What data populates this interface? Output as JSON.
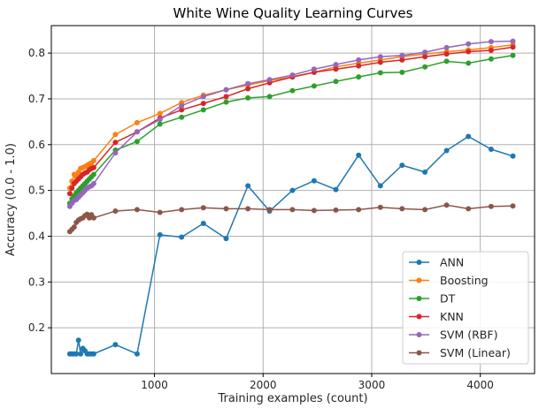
{
  "chart_data": {
    "type": "line",
    "title": "White Wine Quality Learning Curves",
    "xlabel": "Training examples (count)",
    "ylabel": "Accuracy (0.0 - 1.0)",
    "xlim": [
      50,
      4500
    ],
    "ylim": [
      0.1,
      0.86
    ],
    "xticks": [
      1000,
      2000,
      3000,
      4000
    ],
    "yticks": [
      0.2,
      0.3,
      0.4,
      0.5,
      0.6,
      0.7,
      0.8
    ],
    "grid": true,
    "legend_position": "lower-right",
    "series": [
      {
        "name": "ANN",
        "color": "#1f77b4",
        "x": [
          220,
          240,
          260,
          280,
          300,
          320,
          340,
          360,
          380,
          400,
          420,
          440,
          640,
          840,
          1050,
          1250,
          1450,
          1660,
          1860,
          2060,
          2270,
          2470,
          2670,
          2880,
          3080,
          3280,
          3490,
          3690,
          3890,
          4100,
          4300
        ],
        "y": [
          0.143,
          0.143,
          0.143,
          0.143,
          0.173,
          0.143,
          0.155,
          0.15,
          0.143,
          0.143,
          0.143,
          0.143,
          0.163,
          0.143,
          0.403,
          0.398,
          0.428,
          0.395,
          0.51,
          0.455,
          0.5,
          0.521,
          0.502,
          0.577,
          0.51,
          0.555,
          0.54,
          0.587,
          0.618,
          0.59,
          0.575
        ]
      },
      {
        "name": "Boosting",
        "color": "#ff7f0e",
        "x": [
          220,
          240,
          260,
          280,
          300,
          320,
          340,
          360,
          380,
          400,
          420,
          440,
          640,
          840,
          1050,
          1250,
          1450,
          1660,
          1860,
          2060,
          2270,
          2470,
          2670,
          2880,
          3080,
          3280,
          3490,
          3690,
          3890,
          4100,
          4300
        ],
        "y": [
          0.505,
          0.52,
          0.535,
          0.53,
          0.54,
          0.548,
          0.55,
          0.552,
          0.555,
          0.558,
          0.56,
          0.565,
          0.622,
          0.648,
          0.668,
          0.692,
          0.708,
          0.72,
          0.73,
          0.74,
          0.748,
          0.758,
          0.77,
          0.778,
          0.785,
          0.792,
          0.798,
          0.803,
          0.807,
          0.812,
          0.818
        ]
      },
      {
        "name": "DT",
        "color": "#2ca02c",
        "x": [
          220,
          240,
          260,
          280,
          300,
          320,
          340,
          360,
          380,
          400,
          420,
          440,
          640,
          840,
          1050,
          1250,
          1450,
          1660,
          1860,
          2060,
          2270,
          2470,
          2670,
          2880,
          3080,
          3280,
          3490,
          3690,
          3890,
          4100,
          4300
        ],
        "y": [
          0.472,
          0.482,
          0.488,
          0.495,
          0.5,
          0.505,
          0.51,
          0.515,
          0.52,
          0.525,
          0.53,
          0.535,
          0.588,
          0.607,
          0.645,
          0.66,
          0.676,
          0.693,
          0.702,
          0.705,
          0.718,
          0.728,
          0.738,
          0.748,
          0.757,
          0.758,
          0.77,
          0.782,
          0.778,
          0.787,
          0.795
        ]
      },
      {
        "name": "KNN",
        "color": "#d62728",
        "x": [
          220,
          240,
          260,
          280,
          300,
          320,
          340,
          360,
          380,
          400,
          420,
          440,
          640,
          840,
          1050,
          1250,
          1450,
          1660,
          1860,
          2060,
          2270,
          2470,
          2670,
          2880,
          3080,
          3280,
          3490,
          3690,
          3890,
          4100,
          4300
        ],
        "y": [
          0.493,
          0.505,
          0.515,
          0.52,
          0.525,
          0.53,
          0.535,
          0.538,
          0.54,
          0.545,
          0.548,
          0.55,
          0.605,
          0.628,
          0.658,
          0.676,
          0.69,
          0.705,
          0.722,
          0.735,
          0.748,
          0.758,
          0.765,
          0.772,
          0.78,
          0.785,
          0.792,
          0.798,
          0.803,
          0.806,
          0.813
        ]
      },
      {
        "name": "SVM (RBF)",
        "color": "#9467bd",
        "x": [
          220,
          240,
          260,
          280,
          300,
          320,
          340,
          360,
          380,
          400,
          420,
          440,
          640,
          840,
          1050,
          1250,
          1450,
          1660,
          1860,
          2060,
          2270,
          2470,
          2670,
          2880,
          3080,
          3280,
          3490,
          3690,
          3890,
          4100,
          4300
        ],
        "y": [
          0.465,
          0.472,
          0.478,
          0.48,
          0.485,
          0.49,
          0.495,
          0.5,
          0.505,
          0.508,
          0.51,
          0.515,
          0.582,
          0.628,
          0.655,
          0.685,
          0.705,
          0.72,
          0.733,
          0.742,
          0.752,
          0.765,
          0.775,
          0.785,
          0.792,
          0.795,
          0.802,
          0.812,
          0.82,
          0.825,
          0.826
        ]
      },
      {
        "name": "SVM (Linear)",
        "color": "#8c564b",
        "x": [
          220,
          240,
          260,
          280,
          300,
          320,
          340,
          360,
          380,
          400,
          420,
          440,
          640,
          840,
          1050,
          1250,
          1450,
          1660,
          1860,
          2060,
          2270,
          2470,
          2670,
          2880,
          3080,
          3280,
          3490,
          3690,
          3890,
          4100,
          4300
        ],
        "y": [
          0.41,
          0.415,
          0.42,
          0.43,
          0.435,
          0.438,
          0.44,
          0.445,
          0.448,
          0.44,
          0.447,
          0.44,
          0.455,
          0.458,
          0.452,
          0.458,
          0.462,
          0.46,
          0.46,
          0.458,
          0.458,
          0.456,
          0.457,
          0.458,
          0.463,
          0.46,
          0.458,
          0.468,
          0.46,
          0.465,
          0.466
        ]
      }
    ]
  }
}
